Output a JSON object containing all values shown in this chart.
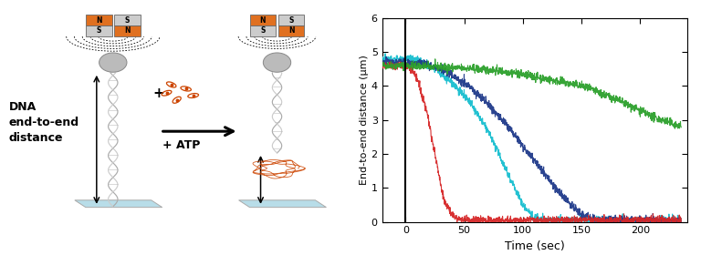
{
  "ylabel": "End-to-end distance (μm)",
  "xlabel": "Time (sec)",
  "xlim": [
    -20,
    240
  ],
  "ylim": [
    0,
    6
  ],
  "xticks": [
    0,
    50,
    100,
    150,
    200
  ],
  "yticks": [
    0,
    1,
    2,
    3,
    4,
    5,
    6
  ],
  "vline_x": 0,
  "colors": {
    "green": "#2ca02c",
    "cyan": "#17becf",
    "blue": "#1f3a8a",
    "red": "#d62728"
  },
  "noise_amplitude": 0.06,
  "seed": 42,
  "magnet_orange": "#e07020",
  "magnet_gray": "#cccccc",
  "bead_color": "#bbbbbb",
  "bead_edge": "#888888",
  "surface_color": "#b8dde8",
  "surface_edge": "#aaaaaa",
  "dna_color1": "#aaaaaa",
  "dna_color2": "#cccccc",
  "protein_color": "#cc4400",
  "arrow_color": "black",
  "text_color": "black",
  "label_fontsize": 9,
  "atp_fontsize": 9
}
